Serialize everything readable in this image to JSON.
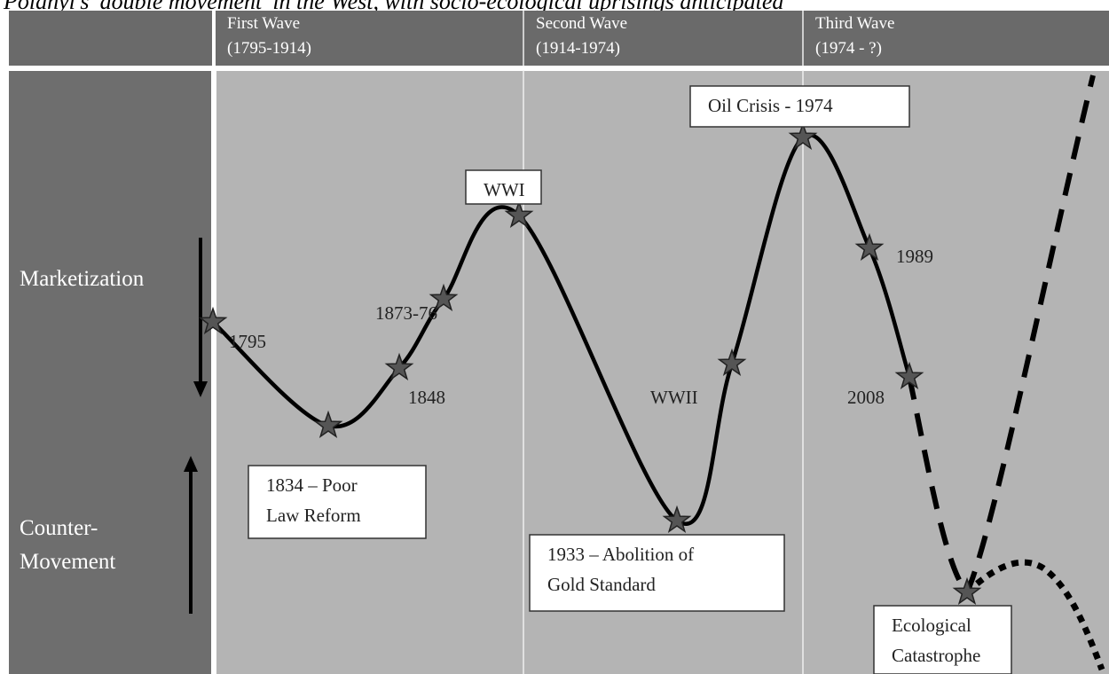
{
  "title": "Polanyi's 'double movement' in the West, with socio-ecological uprisings anticipated",
  "header": {
    "columns": [
      {
        "name": "First Wave",
        "period": "(1795-1914)"
      },
      {
        "name": "Second Wave",
        "period": "(1914-1974)"
      },
      {
        "name": "Third Wave",
        "period": "(1974 - ?)"
      }
    ]
  },
  "axis": {
    "top": "Marketization",
    "bottom": [
      "Counter-",
      "Movement"
    ]
  },
  "events": [
    "1795",
    "1848",
    "1873-76",
    "WWII",
    "1989",
    "2008"
  ],
  "boxes": [
    {
      "lines": [
        "WWI"
      ]
    },
    {
      "lines": [
        "Oil Crisis - 1974"
      ]
    },
    {
      "lines": [
        "1834 – Poor",
        "Law Reform"
      ]
    },
    {
      "lines": [
        "1933 – Abolition of",
        "Gold Standard"
      ]
    },
    {
      "lines": [
        "Ecological",
        "Catastrophe"
      ]
    }
  ]
}
